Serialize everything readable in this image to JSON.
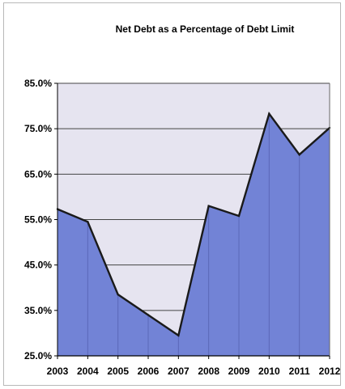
{
  "chart_data": {
    "type": "area",
    "title": "Net Debt as a Percentage of Debt Limit",
    "xlabel": "",
    "ylabel": "",
    "categories": [
      "2003",
      "2004",
      "2005",
      "2006",
      "2007",
      "2008",
      "2009",
      "2010",
      "2011",
      "2012"
    ],
    "series": [
      {
        "values": [
          57.3,
          54.5,
          38.5,
          34.0,
          29.5,
          58.0,
          55.8,
          78.3,
          69.3,
          75.2
        ]
      }
    ],
    "ylim": [
      25.0,
      85.0
    ],
    "yticks": [
      "25.0%",
      "35.0%",
      "45.0%",
      "55.0%",
      "65.0%",
      "75.0%",
      "85.0%"
    ],
    "ytick_values": [
      25,
      35,
      45,
      55,
      65,
      75,
      85
    ],
    "grid": true,
    "legend": "none",
    "colors": {
      "fill": "#7283d6",
      "line": "#1a1a1a",
      "plot_background": "#e6e4f0",
      "gridline": "#444444",
      "dropline": "#5a68b8"
    }
  }
}
